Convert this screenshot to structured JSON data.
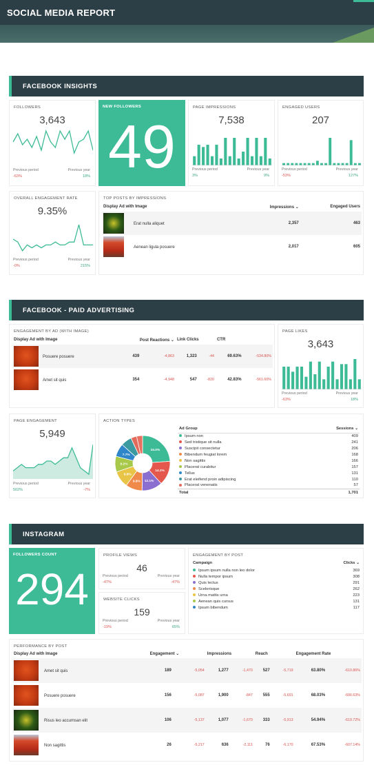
{
  "title": "SOCIAL MEDIA REPORT",
  "colors": {
    "accent": "#3dbb96",
    "header": "#2c3e46",
    "negative": "#d9534f",
    "positive": "#3aa582"
  },
  "facebook_insights": {
    "heading": "FACEBOOK INSIGHTS",
    "followers": {
      "label": "FOLLOWERS",
      "value": "3,643",
      "prev_label": "Previous period",
      "prev_year_label": "Previous year",
      "prev_change": "-63%",
      "year_change": "18%",
      "series": [
        5,
        8,
        4,
        6,
        3,
        7,
        2,
        9,
        5,
        3,
        9,
        6,
        9,
        1,
        5,
        6,
        9,
        2
      ]
    },
    "new_followers": {
      "label": "NEW FOLLOWERS",
      "value": "49"
    },
    "page_impressions": {
      "label": "PAGE IMPRESSIONS",
      "value": "7,538",
      "prev_label": "Previous period",
      "prev_year_label": "Previous year",
      "prev_change": "3%",
      "year_change": "9%",
      "series": [
        4,
        9,
        8,
        9,
        4,
        9,
        3,
        12,
        4,
        12,
        3,
        6,
        12,
        4,
        12,
        4,
        12,
        3
      ]
    },
    "engaged_users": {
      "label": "ENGAGED USERS",
      "value": "207",
      "prev_label": "Previous period",
      "prev_year_label": "Previous year",
      "prev_change": "-53%",
      "year_change": "127%",
      "series": [
        1,
        1,
        1,
        1,
        1,
        1,
        1,
        1,
        2,
        1,
        1,
        12,
        1,
        1,
        1,
        1,
        11,
        1,
        1
      ]
    },
    "engagement_rate": {
      "label": "OVERALL ENGAGEMENT RATE",
      "value": "9.35%",
      "prev_label": "Previous period",
      "prev_year_label": "Previous year",
      "prev_change": "-0%",
      "year_change": "215%",
      "series": [
        5,
        4,
        1,
        3,
        2,
        3,
        2,
        3,
        3,
        4,
        3,
        3,
        4,
        4,
        10,
        3,
        3,
        3
      ]
    },
    "top_posts": {
      "label": "TOP POSTS BY IMPRESSIONS",
      "col1": "Display Ad with Image",
      "col2": "Impressions ⌄",
      "col3": "Engaged Users",
      "rows": [
        {
          "name": "Erat nulla aliquet",
          "impressions": "2,357",
          "engaged": "463",
          "thumb": "t-green"
        },
        {
          "name": "Aenean ligula posuere",
          "impressions": "2,017",
          "engaged": "605",
          "thumb": "t-tree"
        }
      ]
    }
  },
  "paid_ads": {
    "heading": "FACEBOOK - PAID ADVERTISING",
    "engagement_by_ad": {
      "label": "ENGAGEMENT BY AD (WITH IMAGE)",
      "col1": "Display Ad with Image",
      "col2": "Post Reactions ⌄",
      "col3": "Link Clicks",
      "col4": "CTR",
      "rows": [
        {
          "name": "Posuere posuere",
          "reactions": "439",
          "reactions_chg": "-4,863",
          "clicks": "1,323",
          "clicks_chg": "-44",
          "ctr": "69.63%",
          "ctr_chg": "-534.80%",
          "thumb": "t-red"
        },
        {
          "name": "Amet sit quis",
          "reactions": "354",
          "reactions_chg": "-4,948",
          "clicks": "547",
          "clicks_chg": "-820",
          "ctr": "42.83%",
          "ctr_chg": "-561.60%",
          "thumb": "t-red"
        }
      ]
    },
    "page_likes": {
      "label": "PAGE LIKES",
      "value": "3,643",
      "prev_label": "Previous period",
      "prev_year_label": "Previous year",
      "prev_change": "-63%",
      "year_change": "18%",
      "series": [
        9,
        9,
        7,
        9,
        9,
        5,
        11,
        6,
        11,
        4,
        9,
        11,
        4,
        10,
        10,
        4,
        12,
        4
      ]
    },
    "page_engagement": {
      "label": "PAGE ENGAGEMENT",
      "value": "5,949",
      "prev_label": "Previous period",
      "prev_year_label": "Previous year",
      "prev_change": "502%",
      "year_change": "-7%",
      "series": [
        2,
        3,
        4,
        3,
        3,
        3,
        4,
        4,
        5,
        5,
        4,
        5,
        6,
        6,
        9,
        6,
        3,
        2,
        1,
        10
      ]
    },
    "action_types": {
      "label": "ACTION TYPES",
      "slices": [
        {
          "pct": 24.0,
          "label": "24.0%",
          "color": "#3dbb96"
        },
        {
          "pct": 14.3,
          "label": "14.3%",
          "color": "#e4574c"
        },
        {
          "pct": 12.1,
          "label": "12.1%",
          "color": "#8a6fd1"
        },
        {
          "pct": 9.8,
          "label": "9.8%",
          "color": "#f08a4b"
        },
        {
          "pct": 9.8,
          "label": "9.8%",
          "color": "#e8c547"
        },
        {
          "pct": 9.2,
          "label": "9.2%",
          "color": "#a8c84a"
        },
        {
          "pct": 7.7,
          "label": "7.7%",
          "color": "#2f86c9"
        },
        {
          "pct": 6.4,
          "label": "",
          "color": "#3a9aa0"
        },
        {
          "pct": 3.4,
          "label": "",
          "color": "#e26a5a"
        },
        {
          "pct": 3.5,
          "label": "",
          "color": "#e87060"
        }
      ]
    },
    "ad_group": {
      "col1": "Ad Group",
      "col2": "Sessions ⌄",
      "rows": [
        {
          "name": "Ipsum non",
          "value": "409",
          "color": "#3dbb96"
        },
        {
          "name": "Sed tristique sit nulla",
          "value": "241",
          "color": "#e4574c"
        },
        {
          "name": "Suscipit consectetur",
          "value": "206",
          "color": "#8a6fd1"
        },
        {
          "name": "Bibendum feugiat lorem",
          "value": "168",
          "color": "#f08a4b"
        },
        {
          "name": "Non sagittis",
          "value": "166",
          "color": "#e8c547"
        },
        {
          "name": "Placerat curabitur",
          "value": "157",
          "color": "#a8c84a"
        },
        {
          "name": "Tellus",
          "value": "131",
          "color": "#2f86c9"
        },
        {
          "name": "Erat eleifend proin adipiscing",
          "value": "110",
          "color": "#3a9aa0"
        },
        {
          "name": "Placerat venenatis",
          "value": "57",
          "color": "#e26a5a"
        }
      ],
      "total_label": "Total",
      "total_value": "1,701"
    }
  },
  "instagram": {
    "heading": "INSTAGRAM",
    "followers_count": {
      "label": "FOLLOWERS COUNT",
      "value": "294"
    },
    "profile_views": {
      "label": "PROFILE VIEWS",
      "value": "46",
      "prev_label": "Previous period",
      "prev_year_label": "Previous year",
      "prev_change": "-47%",
      "year_change": "-47%"
    },
    "website_clicks": {
      "label": "WEBSITE CLICKS",
      "value": "159",
      "prev_label": "Previous period",
      "prev_year_label": "Previous year",
      "prev_change": "-19%",
      "year_change": "65%"
    },
    "engagement_by_post": {
      "label": "ENGAGEMENT BY POST",
      "col1": "Campaign",
      "col2": "Clicks ⌄",
      "rows": [
        {
          "name": "Ipsum ipsum nulla non leo dolor",
          "value": "369",
          "color": "#3dbb96"
        },
        {
          "name": "Nulla tempor ipsum",
          "value": "308",
          "color": "#e4574c"
        },
        {
          "name": "Quis lectus",
          "value": "291",
          "color": "#8a6fd1"
        },
        {
          "name": "Scelerisque",
          "value": "262",
          "color": "#f08a4b"
        },
        {
          "name": "Urna mattis urna",
          "value": "223",
          "color": "#e8c547"
        },
        {
          "name": "Aenean quis cursus",
          "value": "131",
          "color": "#a8c84a"
        },
        {
          "name": "Ipsum bibendum",
          "value": "117",
          "color": "#2f86c9"
        }
      ]
    },
    "performance": {
      "label": "PERFORMANCE BY POST",
      "col1": "Display Ad with Image",
      "col2": "Engagement ⌄",
      "col3": "Impressions",
      "col4": "Reach",
      "col5": "Engagement Rate",
      "rows": [
        {
          "name": "Amet sit quis",
          "eng": "189",
          "eng_chg": "-5,054",
          "imp": "1,277",
          "imp_chg": "-1,470",
          "reach": "527",
          "reach_chg": "-5,719",
          "rate": "63.80%",
          "rate_chg": "-610.86%",
          "thumb": "t-red"
        },
        {
          "name": "Posuere posuere",
          "eng": "156",
          "eng_chg": "-5,087",
          "imp": "1,900",
          "imp_chg": "-847",
          "reach": "555",
          "reach_chg": "-5,691",
          "rate": "68.03%",
          "rate_chg": "-606.63%",
          "thumb": "t-red"
        },
        {
          "name": "Risus leo accumsan elit",
          "eng": "106",
          "eng_chg": "-5,137",
          "imp": "1,077",
          "imp_chg": "-1,670",
          "reach": "333",
          "reach_chg": "-5,913",
          "rate": "54.94%",
          "rate_chg": "-619.72%",
          "thumb": "t-green"
        },
        {
          "name": "Non sagittis",
          "eng": "26",
          "eng_chg": "-5,217",
          "imp": "636",
          "imp_chg": "-2,111",
          "reach": "76",
          "reach_chg": "-6,170",
          "rate": "67.53%",
          "rate_chg": "-607.14%",
          "thumb": "t-tree"
        }
      ]
    }
  }
}
